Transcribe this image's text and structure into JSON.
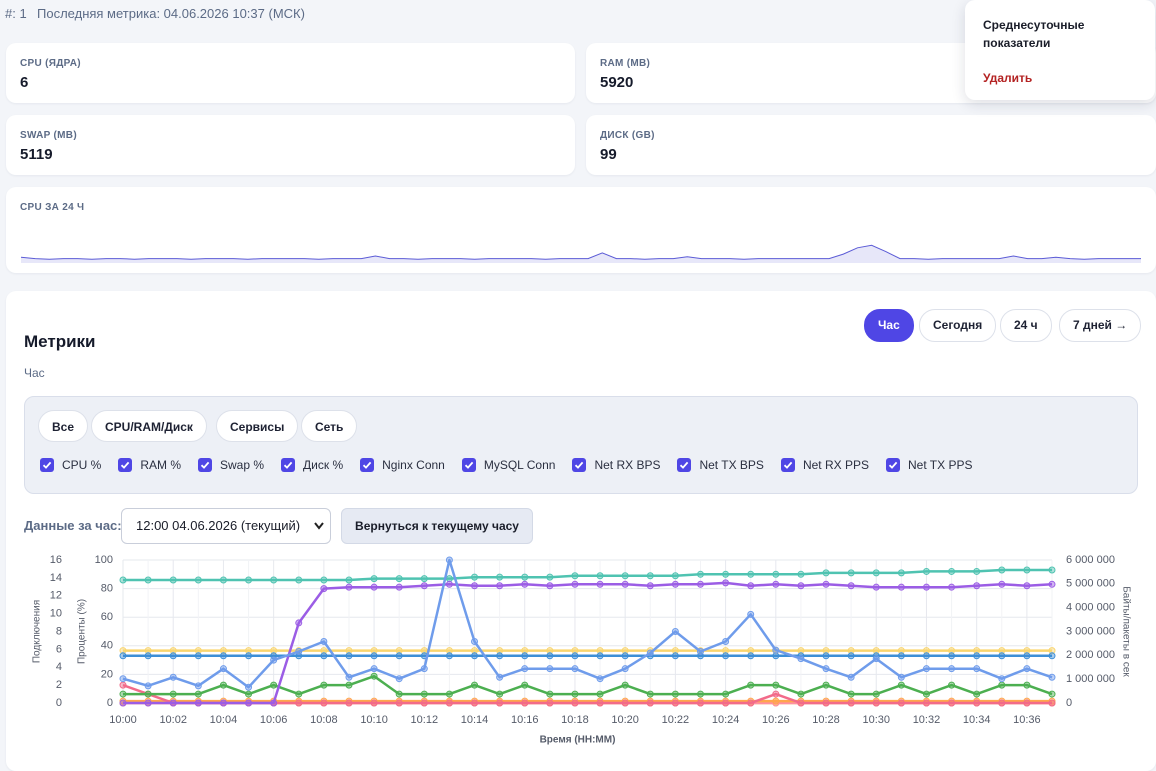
{
  "header": {
    "id": "#: 1",
    "last_metric": "Последняя метрика: 04.06.2026 10:37 (МСК)"
  },
  "cards": [
    {
      "label": "CPU (ЯДРА)",
      "value": 6
    },
    {
      "label": "RAM (MB)",
      "value": 5920
    },
    {
      "label": "SWAP (MB)",
      "value": 5119
    },
    {
      "label": "ДИСК (GB)",
      "value": 99
    }
  ],
  "menu": {
    "items": [
      "Среднесуточные показатели",
      "Удалить"
    ]
  },
  "metrics": {
    "title": "Метрики",
    "subtitle": "Час",
    "ranges": [
      "Час",
      "Сегодня",
      "24 ч",
      "7 дней →"
    ],
    "active_range": 0,
    "filters": [
      "Все",
      "CPU/RAM/Диск",
      "Сервисы",
      "Сеть"
    ],
    "period_label": "Данные за час:",
    "period_select": "12:00 04.06.2026 (текущий)",
    "back_button": "Вернуться к текущему часу"
  },
  "chart_data": [
    {
      "type": "area",
      "title": "CPU ЗА 24 Ч",
      "color": "#5b5bd6",
      "ylim": [
        0,
        60
      ],
      "values": [
        9,
        7,
        6,
        7,
        7,
        6,
        7,
        7,
        6,
        7,
        7,
        7,
        6,
        7,
        7,
        7,
        6,
        7,
        7,
        7,
        7,
        6,
        7,
        7,
        7,
        11,
        7,
        7,
        6,
        7,
        7,
        7,
        6,
        7,
        7,
        7,
        7,
        6,
        7,
        7,
        7,
        16,
        7,
        7,
        6,
        7,
        7,
        10,
        7,
        7,
        7,
        6,
        7,
        7,
        7,
        7,
        7,
        7,
        14,
        24,
        28,
        18,
        7,
        7,
        6,
        7,
        7,
        7,
        7,
        7,
        11,
        7,
        7,
        9,
        7,
        6,
        7,
        7,
        7,
        7
      ]
    },
    {
      "type": "line",
      "grid": true,
      "x_label": "Время (HH:MM)",
      "y_label": "Проценты (%)",
      "y2_label": "Байты/пакеты в сек",
      "y3_label": "Подключения",
      "categories": [
        "10:00",
        null,
        "10:02",
        null,
        "10:04",
        null,
        "10:06",
        null,
        "10:08",
        null,
        "10:10",
        null,
        "10:12",
        null,
        "10:14",
        null,
        "10:16",
        null,
        "10:18",
        null,
        "10:20",
        null,
        "10:22",
        null,
        "10:24",
        null,
        "10:26",
        null,
        "10:28",
        null,
        "10:30",
        null,
        "10:32",
        null,
        "10:34",
        null,
        "10:36",
        null
      ],
      "ylim": [
        0,
        100
      ],
      "yticks": [
        0,
        20,
        40,
        60,
        80,
        100
      ],
      "y2lim": [
        0,
        6000000
      ],
      "y2ticks": [
        0,
        {
          "value": 1000000,
          "label": "1 000 000"
        },
        {
          "value": 2000000,
          "label": "2 000 000"
        },
        {
          "value": 3000000,
          "label": "3 000 000"
        },
        {
          "value": 4000000,
          "label": "4 000 000"
        },
        {
          "value": 5000000,
          "label": "5 000 000"
        },
        {
          "value": 6000000,
          "label": "6 000 000"
        }
      ],
      "y3lim": [
        0,
        16
      ],
      "y3ticks": [
        0,
        2,
        4,
        6,
        8,
        10,
        12,
        14,
        16
      ],
      "series": [
        {
          "name": "CPU %",
          "color": "#6f9ceb",
          "values": [
            17,
            12,
            18,
            12,
            24,
            11,
            30,
            36,
            43,
            18,
            24,
            17,
            24,
            100,
            43,
            18,
            24,
            24,
            24,
            17,
            24,
            35,
            50,
            36,
            43,
            62,
            37,
            31,
            24,
            18,
            31,
            18,
            24,
            24,
            24,
            17,
            24,
            18
          ]
        },
        {
          "name": "RAM %",
          "color": "#9b5de5",
          "values": [
            0,
            0,
            0,
            0,
            0,
            0,
            0,
            56,
            80,
            81,
            81,
            81,
            82,
            83,
            82,
            82,
            83,
            82,
            83,
            83,
            83,
            82,
            83,
            83,
            84,
            82,
            83,
            82,
            83,
            82,
            81,
            81,
            81,
            81,
            82,
            83,
            82,
            83
          ]
        },
        {
          "name": "Swap %",
          "color": "#3d8fd6",
          "values": [
            33,
            33,
            33,
            33,
            33,
            33,
            33,
            33,
            33,
            33,
            33,
            33,
            33,
            33,
            33,
            33,
            33,
            33,
            33,
            33,
            33,
            33,
            33,
            33,
            33,
            33,
            33,
            33,
            33,
            33,
            33,
            33,
            33,
            33,
            33,
            33,
            33,
            33
          ]
        },
        {
          "name": "Диск %",
          "color": "#4fc3b1",
          "values": [
            86,
            86,
            86,
            86,
            86,
            86,
            86,
            86,
            86,
            86,
            87,
            87,
            87,
            87,
            88,
            88,
            88,
            88,
            89,
            89,
            89,
            89,
            89,
            90,
            90,
            90,
            90,
            90,
            91,
            91,
            91,
            91,
            92,
            92,
            92,
            93,
            93,
            93
          ]
        },
        {
          "name": "Nginx Conn",
          "color": "#4caf50",
          "axis": "y3",
          "values": [
            1,
            1,
            1,
            1,
            2,
            1,
            2,
            1,
            2,
            2,
            3,
            1,
            1,
            1,
            2,
            1,
            2,
            1,
            1,
            1,
            2,
            1,
            1,
            1,
            1,
            2,
            2,
            1,
            2,
            1,
            1,
            2,
            1,
            2,
            1,
            2,
            2,
            1
          ]
        },
        {
          "name": "MySQL Conn",
          "color": "#f26b8a",
          "axis": "y3",
          "values": [
            2,
            1,
            0,
            0,
            0,
            0,
            0,
            0,
            0,
            0,
            0,
            0,
            0,
            0,
            0,
            0,
            0,
            0,
            0,
            0,
            0,
            0,
            0,
            0,
            0,
            0,
            1,
            0,
            0,
            0,
            0,
            0,
            0,
            0,
            0,
            0,
            0,
            0
          ]
        },
        {
          "name": "Net RX BPS",
          "color": "#f9d56e",
          "axis": "y2",
          "values": [
            2200000,
            2200000,
            2200000,
            2200000,
            2200000,
            2200000,
            2200000,
            2200000,
            2200000,
            2200000,
            2200000,
            2200000,
            2200000,
            2200000,
            2200000,
            2200000,
            2200000,
            2200000,
            2200000,
            2200000,
            2200000,
            2200000,
            2200000,
            2200000,
            2200000,
            2200000,
            2200000,
            2200000,
            2200000,
            2200000,
            2200000,
            2200000,
            2200000,
            2200000,
            2200000,
            2200000,
            2200000,
            2200000
          ]
        },
        {
          "name": "Net TX BPS",
          "color": "#ffa64d",
          "axis": "y2",
          "values": [
            80000,
            80000,
            80000,
            80000,
            80000,
            80000,
            80000,
            80000,
            80000,
            80000,
            80000,
            80000,
            80000,
            80000,
            80000,
            80000,
            80000,
            80000,
            80000,
            80000,
            80000,
            80000,
            80000,
            80000,
            80000,
            80000,
            80000,
            80000,
            80000,
            80000,
            80000,
            80000,
            80000,
            80000,
            80000,
            80000,
            80000,
            80000
          ]
        },
        {
          "name": "Net RX PPS",
          "color": "#ff8fa3",
          "axis": "y2",
          "values": [
            150,
            150,
            150,
            150,
            150,
            150,
            150,
            150,
            150,
            150,
            150,
            150,
            150,
            150,
            150,
            150,
            150,
            150,
            150,
            150,
            150,
            150,
            150,
            150,
            150,
            150,
            150,
            150,
            150,
            150,
            150,
            150,
            150,
            150,
            150,
            150,
            150,
            150
          ]
        },
        {
          "name": "Net TX PPS",
          "color": "#f6c343",
          "axis": "y2",
          "values": [
            120,
            120,
            120,
            120,
            120,
            120,
            120,
            120,
            120,
            120,
            120,
            120,
            120,
            120,
            120,
            120,
            120,
            120,
            120,
            120,
            120,
            120,
            120,
            120,
            120,
            120,
            120,
            120,
            120,
            120,
            120,
            120,
            120,
            120,
            120,
            120,
            120,
            120
          ]
        }
      ]
    }
  ]
}
